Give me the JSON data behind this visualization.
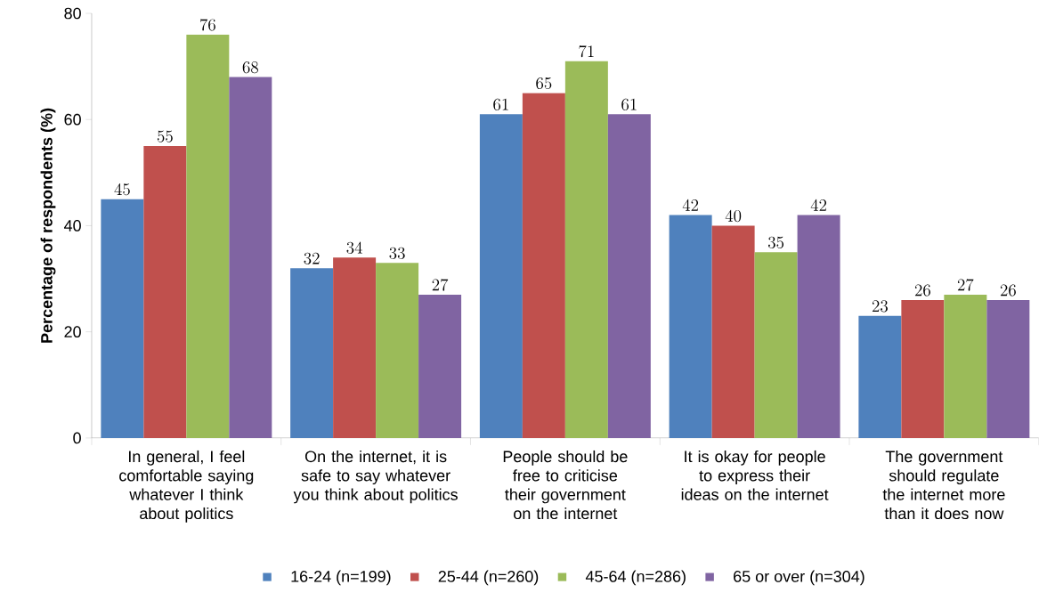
{
  "chart_data": {
    "type": "bar",
    "ylabel": "Percentage of respondents (%)",
    "categories": [
      "In general, I feel comfortable saying whatever I think about politics",
      "On the internet, it is safe to say whatever you think about politics",
      "People should be free to criticise their government on the internet",
      "It is okay for people to express their ideas on the internet",
      "The government should regulate the internet more than it does now"
    ],
    "series": [
      {
        "name": "16-24 (n=199)",
        "color": "#4f81bd",
        "values": [
          45,
          32,
          61,
          42,
          23
        ]
      },
      {
        "name": "25-44 (n=260)",
        "color": "#c0504d",
        "values": [
          55,
          34,
          65,
          40,
          26
        ]
      },
      {
        "name": "45-64 (n=286)",
        "color": "#9bbb59",
        "values": [
          76,
          33,
          71,
          35,
          27
        ]
      },
      {
        "name": "65 or over (n=304)",
        "color": "#8064a2",
        "values": [
          68,
          27,
          61,
          42,
          26
        ]
      }
    ],
    "ylim": [
      0,
      80
    ],
    "yticks": [
      0,
      20,
      40,
      60,
      80
    ],
    "data_labels": true,
    "legend": "bottom"
  }
}
